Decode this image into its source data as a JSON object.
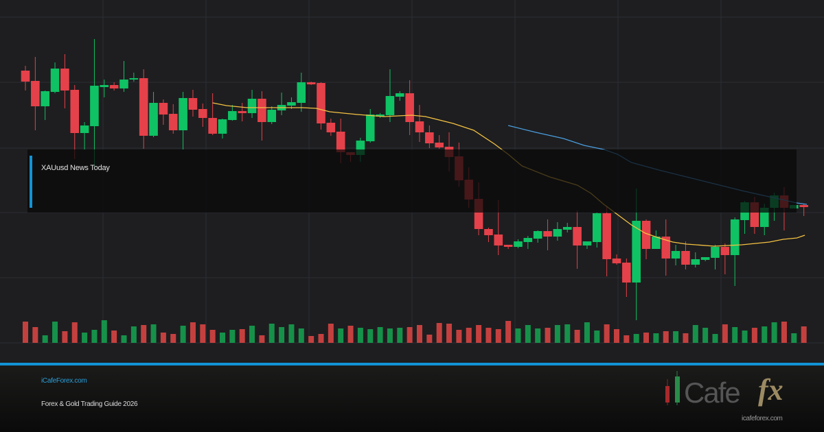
{
  "chart_data": {
    "type": "candlestick",
    "title": "XAUusd News Today",
    "ylim": [
      80,
      600
    ],
    "candles": [
      [
        497,
        504,
        468,
        481
      ],
      [
        482,
        517,
        410,
        445
      ],
      [
        445,
        468,
        425,
        467
      ],
      [
        466,
        509,
        464,
        500
      ],
      [
        500,
        521,
        442,
        468
      ],
      [
        469,
        476,
        368,
        406
      ],
      [
        406,
        422,
        382,
        417
      ],
      [
        416,
        543,
        355,
        475
      ],
      [
        473,
        484,
        458,
        476
      ],
      [
        476,
        480,
        468,
        471
      ],
      [
        471,
        511,
        466,
        484
      ],
      [
        484,
        494,
        481,
        486
      ],
      [
        486,
        499,
        383,
        402
      ],
      [
        402,
        466,
        400,
        450
      ],
      [
        450,
        455,
        418,
        433
      ],
      [
        434,
        448,
        405,
        410
      ],
      [
        410,
        466,
        382,
        457
      ],
      [
        457,
        469,
        430,
        440
      ],
      [
        441,
        449,
        415,
        428
      ],
      [
        428,
        464,
        403,
        405
      ],
      [
        405,
        427,
        398,
        426
      ],
      [
        425,
        447,
        424,
        438
      ],
      [
        438,
        450,
        423,
        435
      ],
      [
        435,
        469,
        428,
        456
      ],
      [
        456,
        467,
        395,
        422
      ],
      [
        422,
        445,
        419,
        440
      ],
      [
        439,
        465,
        432,
        447
      ],
      [
        446,
        458,
        441,
        451
      ],
      [
        450,
        494,
        437,
        480
      ],
      [
        480,
        481,
        476,
        477
      ],
      [
        479,
        480,
        411,
        420
      ],
      [
        421,
        427,
        402,
        407
      ],
      [
        408,
        427,
        362,
        378
      ],
      [
        378,
        378,
        364,
        374
      ],
      [
        374,
        399,
        364,
        395
      ],
      [
        394,
        441,
        392,
        433
      ],
      [
        430,
        435,
        428,
        433
      ],
      [
        432,
        499,
        422,
        460
      ],
      [
        459,
        467,
        453,
        464
      ],
      [
        464,
        483,
        403,
        422
      ],
      [
        423,
        447,
        393,
        407
      ],
      [
        407,
        417,
        384,
        391
      ],
      [
        392,
        403,
        383,
        385
      ],
      [
        386,
        407,
        350,
        371
      ],
      [
        372,
        392,
        328,
        337
      ],
      [
        338,
        356,
        297,
        309
      ],
      [
        310,
        334,
        257,
        266
      ],
      [
        266,
        268,
        247,
        257
      ],
      [
        258,
        308,
        228,
        242
      ],
      [
        243,
        243,
        237,
        240
      ],
      [
        240,
        251,
        238,
        248
      ],
      [
        247,
        256,
        237,
        253
      ],
      [
        252,
        264,
        246,
        263
      ],
      [
        263,
        280,
        235,
        255
      ],
      [
        255,
        276,
        249,
        266
      ],
      [
        265,
        275,
        261,
        269
      ],
      [
        269,
        293,
        208,
        242
      ],
      [
        242,
        248,
        237,
        248
      ],
      [
        247,
        290,
        239,
        289
      ],
      [
        289,
        300,
        197,
        222
      ],
      [
        223,
        229,
        214,
        216
      ],
      [
        217,
        223,
        167,
        188
      ],
      [
        188,
        325,
        133,
        278
      ],
      [
        278,
        280,
        222,
        237
      ],
      [
        237,
        264,
        237,
        255
      ],
      [
        255,
        280,
        198,
        223
      ],
      [
        223,
        243,
        213,
        234
      ],
      [
        234,
        248,
        207,
        214
      ],
      [
        214,
        232,
        210,
        222
      ],
      [
        221,
        225,
        219,
        225
      ],
      [
        224,
        243,
        207,
        240
      ],
      [
        240,
        245,
        200,
        228
      ],
      [
        228,
        283,
        183,
        280
      ],
      [
        279,
        307,
        259,
        305
      ],
      [
        305,
        313,
        259,
        269
      ],
      [
        269,
        303,
        257,
        297
      ],
      [
        297,
        319,
        278,
        315
      ],
      [
        315,
        327,
        264,
        297
      ],
      [
        296,
        301,
        296,
        301
      ],
      [
        301,
        303,
        285,
        298
      ]
    ],
    "candle_fields": [
      "open",
      "high",
      "low",
      "close"
    ],
    "volume": [
      31,
      23,
      11,
      31,
      17,
      30,
      15,
      19,
      33,
      18,
      11,
      24,
      26,
      27,
      15,
      13,
      25,
      30,
      27,
      19,
      15,
      19,
      20,
      25,
      11,
      28,
      23,
      27,
      21,
      10,
      13,
      28,
      21,
      25,
      22,
      20,
      23,
      21,
      22,
      23,
      26,
      12,
      29,
      28,
      19,
      22,
      26,
      22,
      20,
      32,
      21,
      26,
      21,
      22,
      26,
      27,
      19,
      30,
      18,
      27,
      20,
      11,
      13,
      15,
      14,
      17,
      17,
      14,
      26,
      22,
      13,
      27,
      23,
      18,
      22,
      24,
      30,
      31,
      14,
      24
    ],
    "volume_up": [
      0,
      0,
      1,
      1,
      0,
      0,
      1,
      1,
      1,
      0,
      1,
      1,
      0,
      1,
      0,
      0,
      1,
      0,
      0,
      0,
      1,
      1,
      0,
      1,
      0,
      1,
      1,
      1,
      1,
      0,
      0,
      0,
      1,
      0,
      1,
      1,
      1,
      1,
      1,
      0,
      0,
      0,
      0,
      0,
      0,
      0,
      0,
      0,
      0,
      0,
      1,
      1,
      1,
      0,
      1,
      1,
      0,
      1,
      1,
      0,
      0,
      0,
      1,
      0,
      1,
      0,
      1,
      0,
      1,
      1,
      1,
      0,
      1,
      1,
      0,
      1,
      1,
      0,
      1,
      0
    ],
    "ma_fast": [
      [
        19,
        450
      ],
      [
        20.4,
        446
      ],
      [
        22.5,
        443
      ],
      [
        25.3,
        443
      ],
      [
        28.1,
        443
      ],
      [
        29.5,
        442
      ],
      [
        30.9,
        437
      ],
      [
        33.7,
        433
      ],
      [
        36.4,
        430
      ],
      [
        39.2,
        432
      ],
      [
        40.6,
        430
      ],
      [
        43.4,
        420
      ],
      [
        45.5,
        410
      ],
      [
        47.6,
        390
      ],
      [
        49,
        375
      ],
      [
        50.4,
        358
      ],
      [
        53.2,
        342
      ],
      [
        56,
        330
      ],
      [
        57.4,
        318
      ],
      [
        58.7,
        302
      ],
      [
        60.1,
        287
      ],
      [
        61.5,
        272
      ],
      [
        62.9,
        260
      ],
      [
        64.3,
        253
      ],
      [
        65.7,
        247
      ],
      [
        67.1,
        244
      ],
      [
        69.9,
        241
      ],
      [
        71.3,
        242
      ],
      [
        72.7,
        243
      ],
      [
        74.1,
        245
      ],
      [
        75.5,
        247
      ],
      [
        76.9,
        251
      ],
      [
        78.3,
        253
      ],
      [
        79.1,
        257
      ]
    ],
    "ma_slow": [
      [
        49,
        417
      ],
      [
        51.8,
        407
      ],
      [
        54.6,
        398
      ],
      [
        56.7,
        388
      ],
      [
        58.7,
        382
      ],
      [
        60.1,
        375
      ],
      [
        61.5,
        363
      ],
      [
        64.3,
        352
      ],
      [
        67.1,
        342
      ],
      [
        69.9,
        332
      ],
      [
        72.7,
        322
      ],
      [
        75.5,
        313
      ],
      [
        78.3,
        304
      ],
      [
        79.3,
        302
      ]
    ],
    "grid": true,
    "colors": {
      "up": "#0fc264",
      "down": "#e5414a",
      "vol_up": "#16914a",
      "vol_down": "#c4403f",
      "ma_fast": "#f5c242",
      "ma_slow": "#4a9fe0"
    }
  },
  "overlay": {
    "title": "XAUusd News Today"
  },
  "footer": {
    "site": "iCafeForex.com",
    "guide": "Forex & Gold Trading Guide 2026",
    "logo_text": "iCafefx",
    "logo_url": "icafeforex.com"
  }
}
